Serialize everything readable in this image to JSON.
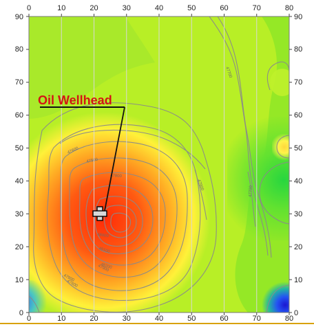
{
  "map": {
    "callout_label": "Oil Wellhead",
    "well_marker": {
      "icon": "plus-cross-icon",
      "x": 22,
      "y": 29
    },
    "x_axis": {
      "min": 0,
      "max": 80,
      "ticks": [
        "0",
        "10",
        "20",
        "30",
        "40",
        "50",
        "60",
        "70",
        "80"
      ]
    },
    "y_axis": {
      "min": 0,
      "max": 90,
      "ticks": [
        "0",
        "10",
        "20",
        "30",
        "40",
        "50",
        "60",
        "70",
        "80",
        "90"
      ]
    },
    "contour_labels": [
      "47600",
      "47500",
      "47700",
      "47800",
      "47900",
      "47700",
      "47600",
      "47900",
      "48000",
      "48100",
      "48200",
      "47900"
    ],
    "colors": {
      "background_low": "#69e51e",
      "field_green": "#b8ef26",
      "field_yellow": "#ffff38",
      "high_orange": "#ff7c16",
      "peak_red": "#ff2b08",
      "low_blue": "#1b17d1",
      "contour": "#8a8a8a",
      "callout": "#d41414",
      "bottom_rule": "#d8a200"
    }
  }
}
